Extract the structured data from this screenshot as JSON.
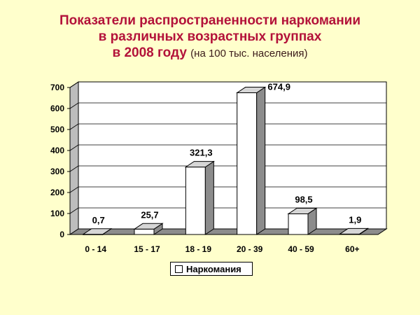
{
  "slide": {
    "title_line1": "Показатели распространенности наркомании",
    "title_line2": "в различных возрастных группах",
    "title_line3": "в 2008 году",
    "title_note": "(на 100 тыс. населения)"
  },
  "chart_data": {
    "type": "bar",
    "title": "Показатели распространенности наркомании в различных возрастных группах в 2008 году (на 100 тыс. населения)",
    "categories": [
      "0 - 14",
      "15 - 17",
      "18 - 19",
      "20 - 39",
      "40 - 59",
      "60+"
    ],
    "series": [
      {
        "name": "Наркомания",
        "values": [
          0.7,
          25.7,
          321.3,
          674.9,
          98.5,
          1.9
        ],
        "labels": [
          "0,7",
          "25,7",
          "321,3",
          "674,9",
          "98,5",
          "1,9"
        ]
      }
    ],
    "yticks": [
      0,
      100,
      200,
      300,
      400,
      500,
      600,
      700
    ],
    "ylim": [
      0,
      700
    ],
    "grid": true,
    "legend_position": "bottom",
    "colors": {
      "bar": "#FFFFFF",
      "side": "#8C8C8C",
      "top": "#D6D6D6",
      "floor": "#8C8C8C"
    }
  }
}
